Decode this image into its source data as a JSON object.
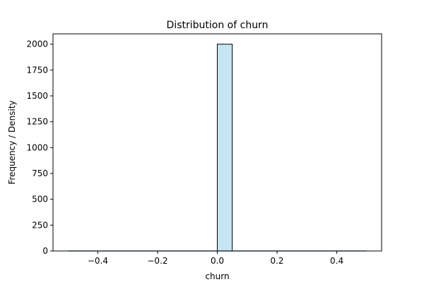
{
  "chart_data": {
    "type": "bar",
    "title": "Distribution of churn",
    "xlabel": "churn",
    "ylabel": "Frequency / Density",
    "xlim": [
      -0.55,
      0.55
    ],
    "ylim": [
      0,
      2100
    ],
    "xticks": [
      -0.4,
      -0.2,
      0.0,
      0.2,
      0.4
    ],
    "xtick_labels": [
      "−0.4",
      "−0.2",
      "0.0",
      "0.2",
      "0.4"
    ],
    "yticks": [
      0,
      250,
      500,
      750,
      1000,
      1250,
      1500,
      1750,
      2000
    ],
    "ytick_labels": [
      "0",
      "250",
      "500",
      "750",
      "1000",
      "1250",
      "1500",
      "1750",
      "2000"
    ],
    "bins": [
      {
        "x0": 0.0,
        "x1": 0.05,
        "count": 2000
      }
    ],
    "density_line": {
      "x": [
        -0.5,
        0.0,
        0.5
      ],
      "y": [
        0,
        0,
        0
      ]
    },
    "bar_color": "#c5e5f2",
    "edge_color": "#000000",
    "grid": false,
    "legend": "none"
  }
}
